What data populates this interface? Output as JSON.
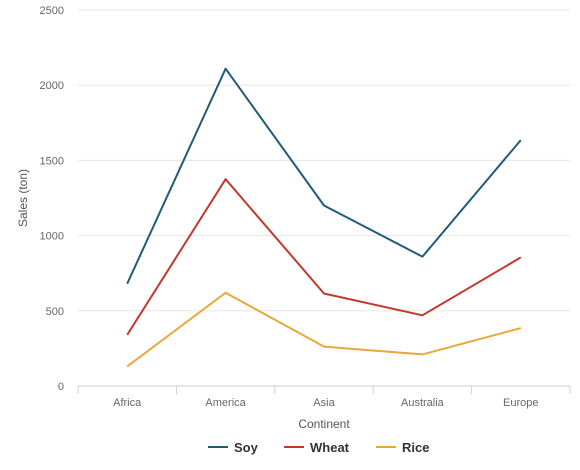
{
  "chart_data": {
    "type": "line",
    "categories": [
      "Africa",
      "America",
      "Asia",
      "Australia",
      "Europe"
    ],
    "series": [
      {
        "name": "Soy",
        "color": "#1f5c7a",
        "values": [
          680,
          2110,
          1200,
          860,
          1635
        ]
      },
      {
        "name": "Wheat",
        "color": "#c0392b",
        "values": [
          340,
          1375,
          615,
          470,
          855
        ]
      },
      {
        "name": "Rice",
        "color": "#e8a838",
        "values": [
          130,
          620,
          262,
          210,
          385
        ]
      }
    ],
    "title": "",
    "xlabel": "Continent",
    "ylabel": "Sales (ton)",
    "ylim": [
      0,
      2500
    ],
    "yticks": [
      0,
      500,
      1000,
      1500,
      2000,
      2500
    ],
    "grid": true,
    "legend_position": "bottom-center"
  }
}
